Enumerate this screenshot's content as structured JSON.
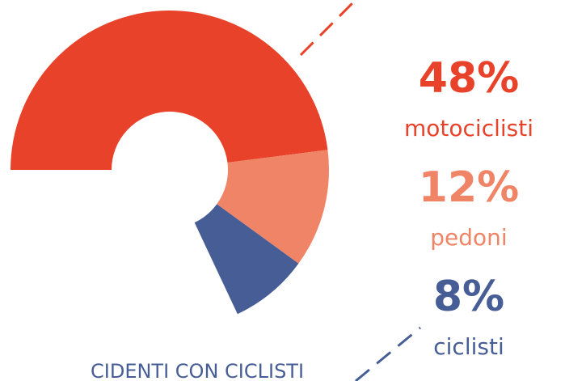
{
  "chart_data": {
    "type": "donut",
    "title": "CIDENTI CON CICLISTI",
    "categories": [
      "motociclisti",
      "pedoni",
      "ciclisti"
    ],
    "values": [
      48,
      12,
      8
    ],
    "value_labels": [
      "48%",
      "12%",
      "8%"
    ],
    "colors": [
      "#e8432a",
      "#f08466",
      "#465d96"
    ]
  }
}
